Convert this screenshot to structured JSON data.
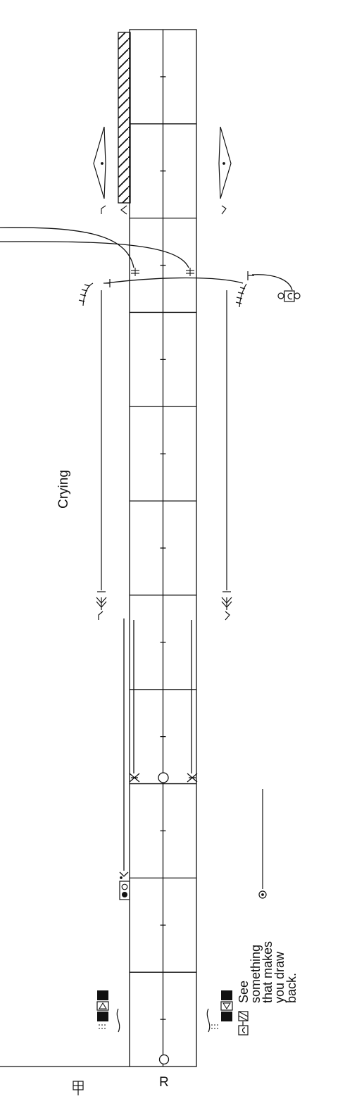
{
  "labels": {
    "crying": "Crying",
    "start_marker": "R",
    "note_line1": "See",
    "note_line2": "something",
    "note_line3": "that makes",
    "note_line4": "you draw",
    "note_line5": "back."
  },
  "colors": {
    "ink": "#111111",
    "paper": "#ffffff"
  },
  "staff": {
    "measure_count": 11
  }
}
